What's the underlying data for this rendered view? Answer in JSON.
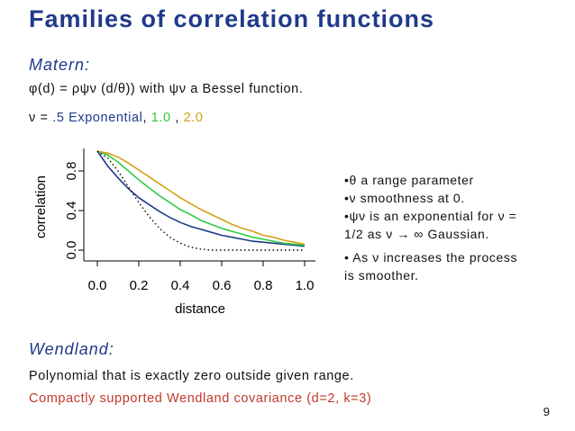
{
  "slide": {
    "title": "Families of correlation functions",
    "matern_heading": "Matern:",
    "matern_formula": "φ(d) =  ρψν (d/θ)) with  ψν a Bessel function.",
    "nu_prefix": "ν =  ",
    "nu_exp": ".5 Exponential",
    "nu_sep1": ", ",
    "nu_one": "1.0",
    "nu_sep2": " , ",
    "nu_two": "2.0",
    "bullet1": "•θ a range parameter",
    "bullet2": "•ν smoothness at 0.",
    "bullet3a": "•ψν is an exponential for ν =",
    "bullet3b": "1/2 as  ν → ∞ Gaussian.",
    "bullet4a": "• As ν increases the process",
    "bullet4b": "is smoother.",
    "wendland_heading": "Wendland:",
    "wendland_line1": "Polynomial that is exactly zero outside given range.",
    "wendland_line2": "Compactly supported Wendland covariance (d=2,  k=3)",
    "page_number": "9"
  },
  "colors": {
    "title": "#1f3a8a",
    "exponential": "#1f3a8a",
    "nu1": "#2ecc40",
    "nu2": "#d4a017",
    "wendland": "#c0392b"
  },
  "chart_data": {
    "type": "line",
    "xlabel": "distance",
    "ylabel": "correlation",
    "xlim": [
      0,
      1
    ],
    "ylim": [
      0,
      1
    ],
    "x_ticks": [
      "0.0",
      "0.2",
      "0.4",
      "0.6",
      "0.8",
      "1.0"
    ],
    "y_ticks": [
      "0.0",
      "0.4",
      "0.8"
    ],
    "x": [
      0,
      0.05,
      0.1,
      0.15,
      0.2,
      0.25,
      0.3,
      0.35,
      0.4,
      0.45,
      0.5,
      0.55,
      0.6,
      0.65,
      0.7,
      0.75,
      0.8,
      0.85,
      0.9,
      0.95,
      1.0
    ],
    "series": [
      {
        "color": "#1f3a8a",
        "dash": "solid",
        "values": [
          1.0,
          0.85,
          0.73,
          0.62,
          0.53,
          0.46,
          0.39,
          0.33,
          0.28,
          0.24,
          0.21,
          0.18,
          0.15,
          0.13,
          0.11,
          0.09,
          0.08,
          0.07,
          0.06,
          0.05,
          0.04
        ]
      },
      {
        "color": "#2ecc40",
        "dash": "solid",
        "values": [
          1.0,
          0.96,
          0.89,
          0.8,
          0.71,
          0.63,
          0.55,
          0.48,
          0.41,
          0.36,
          0.3,
          0.26,
          0.22,
          0.19,
          0.16,
          0.13,
          0.11,
          0.09,
          0.07,
          0.06,
          0.05
        ]
      },
      {
        "color": "#d4a017",
        "dash": "solid",
        "values": [
          1.0,
          0.98,
          0.94,
          0.88,
          0.81,
          0.74,
          0.67,
          0.6,
          0.53,
          0.47,
          0.41,
          0.36,
          0.31,
          0.26,
          0.22,
          0.19,
          0.15,
          0.13,
          0.1,
          0.08,
          0.06
        ]
      },
      {
        "color": "#000000",
        "dash": "dotted",
        "values": [
          1.0,
          0.93,
          0.8,
          0.64,
          0.48,
          0.34,
          0.22,
          0.13,
          0.07,
          0.03,
          0.01,
          0.0,
          0.0,
          0.0,
          0.0,
          0.0,
          0.0,
          0.0,
          0.0,
          0.0,
          0.0
        ]
      }
    ]
  }
}
